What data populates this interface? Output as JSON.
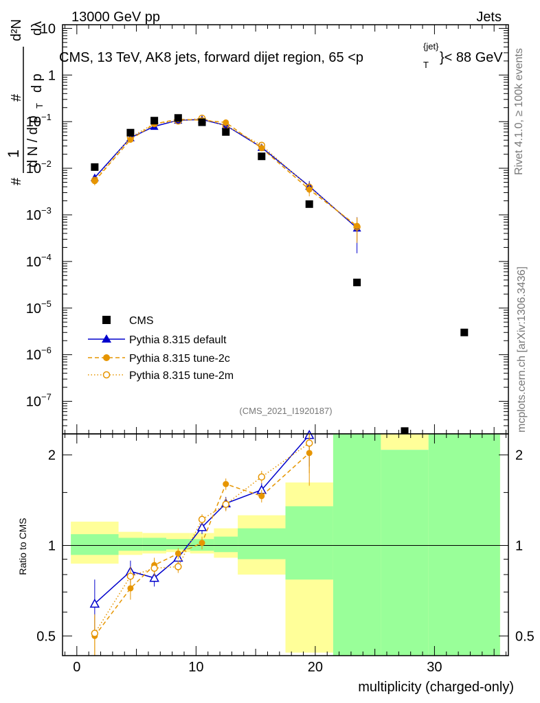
{
  "header": {
    "left": "13000 GeV pp",
    "right": "Jets"
  },
  "plot_title": {
    "prefix": "CMS, 13 TeV, AK8 jets, forward dijet region, 65 <p",
    "sup": "{jet}",
    "sub": "T",
    "suffix": "}< 88 GeV"
  },
  "y_axis_label": {
    "hash": "#",
    "one": "1",
    "dN": "d N / d p",
    "T": "T",
    "num_hash": "#",
    "d2N": "d²N",
    "dp": "d p",
    "dlambda": "dλ"
  },
  "side_text": {
    "rivet": "Rivet 4.1.0, ≥ 100k events",
    "mcplots": "mcplots.cern.ch [arXiv:1306.3436]"
  },
  "analysis_id": "(CMS_2021_I1920187)",
  "legend": [
    {
      "label": "CMS",
      "color": "#000000",
      "style": "square"
    },
    {
      "label": "Pythia 8.315 default",
      "color": "#0000cc",
      "style": "triangle-solid"
    },
    {
      "label": "Pythia 8.315 tune-2c",
      "color": "#e69500",
      "style": "circle-dashed"
    },
    {
      "label": "Pythia 8.315 tune-2m",
      "color": "#e69500",
      "style": "open-circle-dotted"
    }
  ],
  "x_axis_label": "multiplicity (charged-only)",
  "ratio_axis_label": "Ratio to CMS",
  "chart_data": [
    {
      "type": "scatter",
      "panel": "main",
      "yscale": "log",
      "xlim": [
        -1.2,
        36.2
      ],
      "ylim": [
        2e-08,
        12
      ],
      "y_ticks": [
        {
          "v": 10,
          "label": "10",
          "exp": ""
        },
        {
          "v": 1,
          "label": "1",
          "exp": ""
        },
        {
          "v": 0.1,
          "label": "10",
          "exp": "−1"
        },
        {
          "v": 0.01,
          "label": "10",
          "exp": "−2"
        },
        {
          "v": 0.001,
          "label": "10",
          "exp": "−3"
        },
        {
          "v": 0.0001,
          "label": "10",
          "exp": "−4"
        },
        {
          "v": 1e-05,
          "label": "10",
          "exp": "−5"
        },
        {
          "v": 1e-06,
          "label": "10",
          "exp": "−6"
        },
        {
          "v": 1e-07,
          "label": "10",
          "exp": "−7"
        }
      ],
      "series": [
        {
          "name": "CMS",
          "x": [
            1.5,
            4.5,
            6.5,
            8.5,
            10.5,
            12.5,
            15.5,
            19.5,
            23.5,
            27.5,
            32.5
          ],
          "y": [
            0.0106,
            0.058,
            0.105,
            0.12,
            0.097,
            0.06,
            0.018,
            0.0017,
            3.55e-05,
            2.3e-08,
            3e-06
          ]
        },
        {
          "name": "Pythia 8.315 default",
          "x": [
            1.5,
            4.5,
            6.5,
            8.5,
            10.5,
            12.5,
            15.5,
            19.5,
            23.5
          ],
          "y": [
            0.0063,
            0.045,
            0.079,
            0.107,
            0.111,
            0.083,
            0.028,
            0.0041,
            0.00052
          ],
          "err": [
            0.0012,
            0.004,
            0.005,
            0.006,
            0.006,
            0.005,
            0.003,
            0.0012,
            0.00037
          ]
        },
        {
          "name": "Pythia 8.315 tune-2c",
          "x": [
            1.5,
            4.5,
            6.5,
            8.5,
            10.5,
            12.5,
            15.5,
            19.5,
            23.5
          ],
          "y": [
            0.0053,
            0.041,
            0.089,
            0.113,
            0.107,
            0.096,
            0.027,
            0.0035,
            0.00058
          ],
          "err": [
            0.001,
            0.004,
            0.005,
            0.006,
            0.006,
            0.005,
            0.003,
            0.001,
            0.0003
          ]
        },
        {
          "name": "Pythia 8.315 tune-2m",
          "x": [
            1.5,
            4.5,
            6.5,
            8.5,
            10.5,
            12.5,
            15.5,
            19.5,
            23.5
          ],
          "y": [
            0.0055,
            0.046,
            0.091,
            0.103,
            0.118,
            0.082,
            0.031,
            0.0039,
            0.00055
          ],
          "err": [
            0.001,
            0.004,
            0.005,
            0.006,
            0.006,
            0.005,
            0.003,
            0.001,
            0.0003
          ]
        }
      ]
    },
    {
      "type": "scatter",
      "panel": "ratio",
      "yscale": "log",
      "xlim": [
        -1.2,
        36.2
      ],
      "ylim": [
        0.43,
        2.35
      ],
      "x_ticks": [
        0,
        10,
        20,
        30
      ],
      "y_ticks": [
        {
          "v": 0.5,
          "label": "0.5"
        },
        {
          "v": 1,
          "label": "1"
        },
        {
          "v": 2,
          "label": "2"
        }
      ],
      "bands": [
        {
          "x0": -0.5,
          "x1": 3.5,
          "yellow": [
            0.87,
            1.2
          ],
          "green": [
            0.93,
            1.09
          ]
        },
        {
          "x0": 3.5,
          "x1": 5.5,
          "yellow": [
            0.93,
            1.11
          ],
          "green": [
            0.96,
            1.06
          ]
        },
        {
          "x0": 5.5,
          "x1": 7.5,
          "yellow": [
            0.94,
            1.1
          ],
          "green": [
            0.96,
            1.06
          ]
        },
        {
          "x0": 7.5,
          "x1": 9.5,
          "yellow": [
            0.95,
            1.1
          ],
          "green": [
            0.97,
            1.05
          ]
        },
        {
          "x0": 9.5,
          "x1": 11.5,
          "yellow": [
            0.94,
            1.1
          ],
          "green": [
            0.96,
            1.05
          ]
        },
        {
          "x0": 11.5,
          "x1": 13.5,
          "yellow": [
            0.91,
            1.14
          ],
          "green": [
            0.95,
            1.07
          ]
        },
        {
          "x0": 13.5,
          "x1": 17.5,
          "yellow": [
            0.8,
            1.26
          ],
          "green": [
            0.9,
            1.14
          ]
        },
        {
          "x0": 17.5,
          "x1": 21.5,
          "yellow": [
            0.44,
            1.62
          ],
          "green": [
            0.77,
            1.35
          ]
        },
        {
          "x0": 21.5,
          "x1": 25.5,
          "yellow": [
            0.43,
            2.35
          ],
          "green": [
            0.43,
            2.35
          ]
        },
        {
          "x0": 25.5,
          "x1": 29.5,
          "yellow": [
            2.08,
            2.35
          ],
          "green": [
            0.43,
            2.08
          ]
        },
        {
          "x0": 29.5,
          "x1": 35.5,
          "yellow": [
            0.43,
            2.35
          ],
          "green": [
            0.43,
            2.35
          ]
        }
      ],
      "series": [
        {
          "name": "Pythia 8.315 default",
          "x": [
            1.5,
            4.5,
            6.5,
            8.5,
            10.5,
            12.5,
            15.5,
            19.5
          ],
          "y": [
            0.64,
            0.82,
            0.78,
            0.91,
            1.15,
            1.38,
            1.53,
            2.33
          ],
          "err": [
            0.13,
            0.07,
            0.05,
            0.04,
            0.06,
            0.07,
            0.08,
            0.5
          ]
        },
        {
          "name": "Pythia 8.315 tune-2c",
          "x": [
            1.5,
            4.5,
            6.5,
            8.5,
            10.5,
            12.5,
            15.5,
            19.5
          ],
          "y": [
            0.5,
            0.72,
            0.86,
            0.94,
            1.02,
            1.6,
            1.46,
            2.03
          ],
          "err": [
            0.08,
            0.06,
            0.05,
            0.04,
            0.05,
            0.07,
            0.07,
            0.45
          ]
        },
        {
          "name": "Pythia 8.315 tune-2m",
          "x": [
            1.5,
            4.5,
            6.5,
            8.5,
            10.5,
            12.5,
            15.5,
            19.5
          ],
          "y": [
            0.51,
            0.79,
            0.84,
            0.85,
            1.22,
            1.37,
            1.69,
            2.19
          ],
          "err": [
            0.08,
            0.06,
            0.05,
            0.04,
            0.05,
            0.07,
            0.08,
            0.45
          ]
        }
      ]
    }
  ]
}
